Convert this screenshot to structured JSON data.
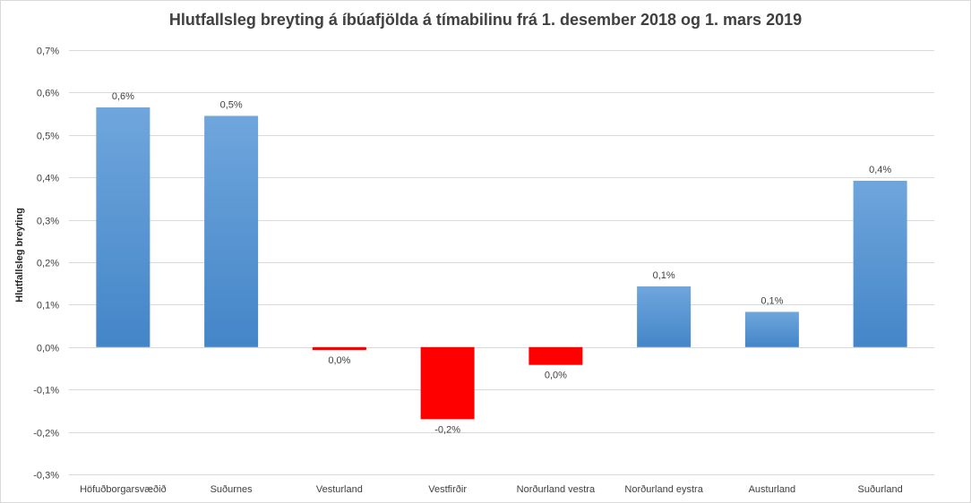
{
  "chart_data": {
    "type": "bar",
    "title": "Hlutfallsleg breyting  á íbúafjölda  á tímabilinu  frá 1. desember 2018 og 1. mars 2019",
    "xlabel": "",
    "ylabel": "Hlutfallsleg breyting",
    "categories": [
      "Höfuðborgarsvæðið",
      "Suðurnes",
      "Vesturland",
      "Vestfirðir",
      "Norðurland vestra",
      "Norðurland eystra",
      "Austurland",
      "Suðurland"
    ],
    "values": [
      0.565,
      0.545,
      -0.007,
      -0.17,
      -0.042,
      0.143,
      0.083,
      0.392
    ],
    "data_labels": [
      "0,6%",
      "0,5%",
      "0,0%",
      "-0,2%",
      "0,0%",
      "0,1%",
      "0,1%",
      "0,4%"
    ],
    "ylim": [
      -0.3,
      0.7
    ],
    "yticks": [
      0.7,
      0.6,
      0.5,
      0.4,
      0.3,
      0.2,
      0.1,
      0.0,
      -0.1,
      -0.2,
      -0.3
    ],
    "ytick_labels": [
      "0,7%",
      "0,6%",
      "0,5%",
      "0,4%",
      "0,3%",
      "0,2%",
      "0,1%",
      "0,0%",
      "-0,1%",
      "-0,2%",
      "-0,3%"
    ],
    "grid": true,
    "legend": "none",
    "colors": {
      "positive": "#5b9bd5",
      "negative": "#ff0000",
      "grid": "#d9d9d9",
      "text": "#404040"
    }
  }
}
